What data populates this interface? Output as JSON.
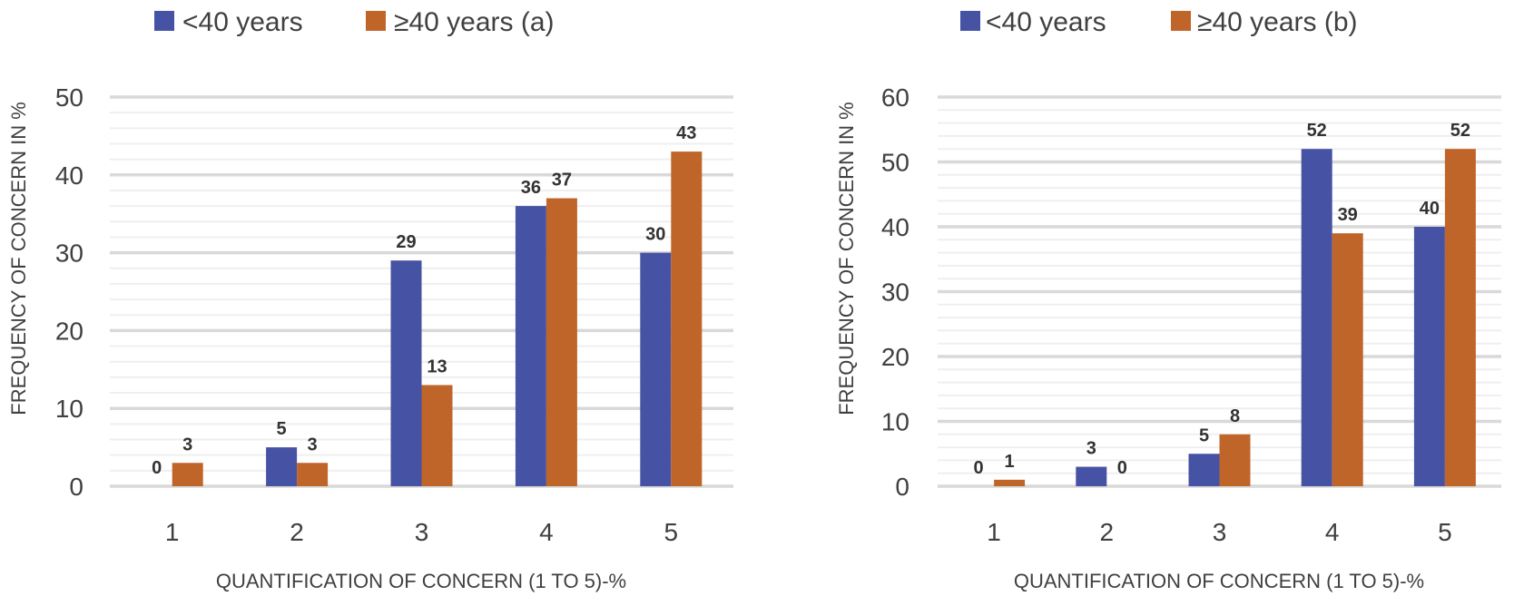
{
  "chart_data": [
    {
      "type": "bar",
      "title": "",
      "xlabel": "QUANTIFICATION OF CONCERN (1 TO 5)-%",
      "ylabel": "FREQUENCY OF CONCERN IN %",
      "ylim": [
        0,
        50
      ],
      "yticks": [
        0,
        10,
        20,
        30,
        40,
        50
      ],
      "minor_grid_step": 2,
      "grid": true,
      "legend_position": "top",
      "categories": [
        "1",
        "2",
        "3",
        "4",
        "5"
      ],
      "series": [
        {
          "name": "<40 years",
          "color": "#4652A3",
          "values": [
            0,
            5,
            29,
            36,
            30
          ]
        },
        {
          "name": "≥40 years (a)",
          "color": "#C0652A",
          "values": [
            3,
            3,
            13,
            37,
            43
          ]
        }
      ]
    },
    {
      "type": "bar",
      "title": "",
      "xlabel": "QUANTIFICATION OF CONCERN (1 TO 5)-%",
      "ylabel": "FREQUENCY OF CONCERN IN %",
      "ylim": [
        0,
        60
      ],
      "yticks": [
        0,
        10,
        20,
        30,
        40,
        50,
        60
      ],
      "minor_grid_step": 2,
      "grid": true,
      "legend_position": "top",
      "categories": [
        "1",
        "2",
        "3",
        "4",
        "5"
      ],
      "series": [
        {
          "name": "<40 years",
          "color": "#4652A3",
          "values": [
            0,
            3,
            5,
            52,
            40
          ]
        },
        {
          "name": "≥40 years (b)",
          "color": "#C0652A",
          "values": [
            1,
            0,
            8,
            39,
            52
          ]
        }
      ]
    }
  ]
}
